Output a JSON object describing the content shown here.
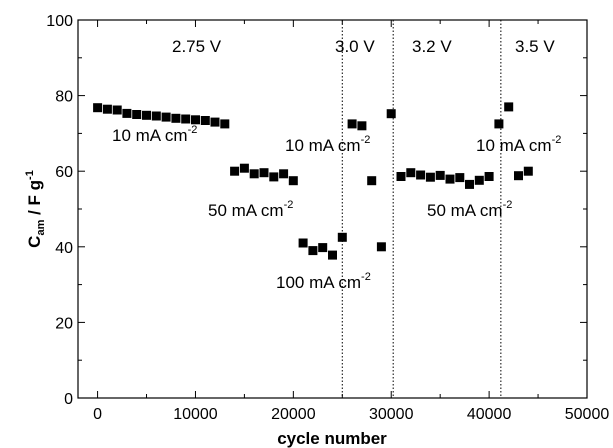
{
  "chart_data": {
    "type": "scatter",
    "title": "",
    "xlabel": "cycle number",
    "ylabel": {
      "main": "C",
      "sub": "am",
      "unit": " / F g",
      "unit_sup": "-1"
    },
    "xlim": [
      -2000,
      50000
    ],
    "ylim": [
      0,
      100
    ],
    "xticks": [
      0,
      10000,
      20000,
      30000,
      40000,
      50000
    ],
    "yticks": [
      0,
      20,
      40,
      60,
      80,
      100
    ],
    "grid": false,
    "marker": "square",
    "marker_color": "#000000",
    "voltage_boundaries": [
      25000,
      30200,
      41200
    ],
    "series": [
      {
        "points": [
          [
            0,
            76.8
          ],
          [
            1000,
            76.4
          ],
          [
            2000,
            76.2
          ],
          [
            3000,
            75.3
          ],
          [
            4000,
            75.0
          ],
          [
            5000,
            74.8
          ],
          [
            6000,
            74.6
          ],
          [
            7000,
            74.3
          ],
          [
            8000,
            74.0
          ],
          [
            9000,
            73.8
          ],
          [
            10000,
            73.6
          ],
          [
            11000,
            73.4
          ],
          [
            12000,
            73.0
          ],
          [
            13000,
            72.5
          ],
          [
            14000,
            60.0
          ],
          [
            15000,
            60.8
          ],
          [
            16000,
            59.3
          ],
          [
            17000,
            59.6
          ],
          [
            18000,
            58.5
          ],
          [
            19000,
            59.3
          ],
          [
            20000,
            57.5
          ],
          [
            21000,
            41.0
          ],
          [
            22000,
            39.0
          ],
          [
            23000,
            39.8
          ],
          [
            24000,
            37.8
          ],
          [
            25000,
            42.5
          ],
          [
            26000,
            72.5
          ],
          [
            27000,
            72.0
          ],
          [
            28000,
            57.5
          ],
          [
            29000,
            40.0
          ],
          [
            30000,
            75.2
          ],
          [
            31000,
            58.6
          ],
          [
            32000,
            59.6
          ],
          [
            33000,
            59.0
          ],
          [
            34000,
            58.4
          ],
          [
            35000,
            58.9
          ],
          [
            36000,
            57.9
          ],
          [
            37000,
            58.3
          ],
          [
            38000,
            56.5
          ],
          [
            39000,
            57.6
          ],
          [
            40000,
            58.6
          ],
          [
            41000,
            72.5
          ],
          [
            42000,
            77.0
          ],
          [
            43000,
            58.8
          ],
          [
            44000,
            60.0
          ]
        ]
      }
    ],
    "annotations": [
      {
        "key": "v1",
        "text": "2.75 V"
      },
      {
        "key": "v2",
        "text": "3.0 V"
      },
      {
        "key": "v3",
        "text": "3.2 V"
      },
      {
        "key": "v4",
        "text": "3.5 V"
      },
      {
        "key": "c1",
        "text": "10 mA cm",
        "sup": "-2"
      },
      {
        "key": "c2",
        "text": "50 mA cm",
        "sup": "-2"
      },
      {
        "key": "c3",
        "text": "100 mA cm",
        "sup": "-2"
      },
      {
        "key": "c4",
        "text": "10 mA cm",
        "sup": "-2"
      },
      {
        "key": "c5",
        "text": "50 mA cm",
        "sup": "-2"
      },
      {
        "key": "c6",
        "text": "10 mA cm",
        "sup": "-2"
      }
    ]
  }
}
